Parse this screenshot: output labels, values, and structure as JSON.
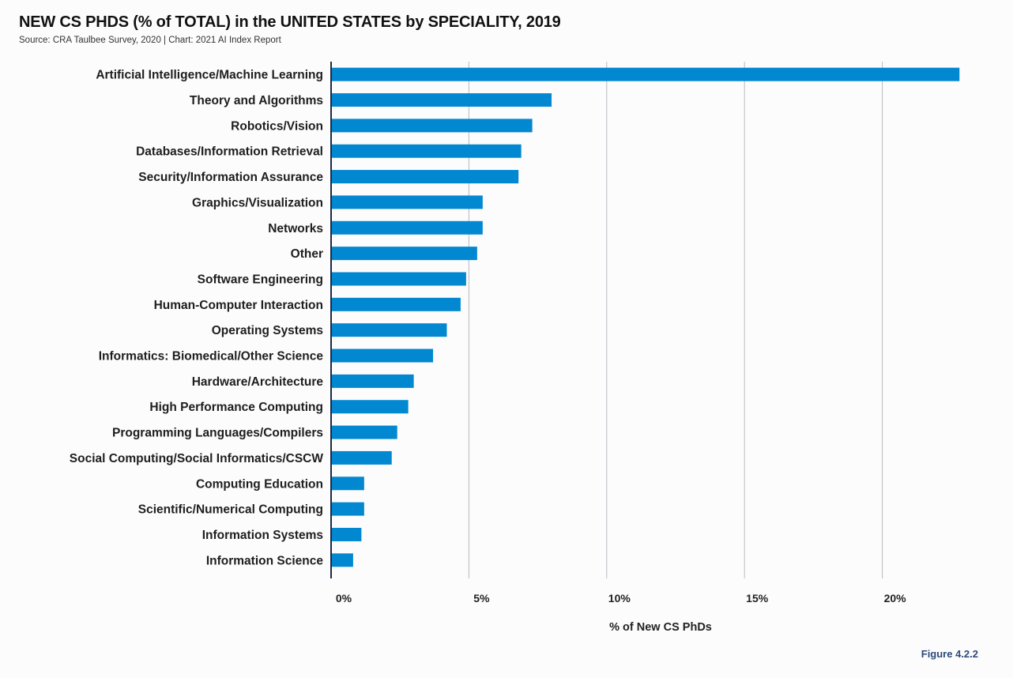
{
  "header": {
    "title": "NEW CS PHDS (% of TOTAL) in the UNITED STATES by SPECIALITY, 2019",
    "source": "Source: CRA Taulbee Survey, 2020 | Chart: 2021 AI Index Report"
  },
  "figure_label": "Figure 4.2.2",
  "chart_data": {
    "type": "bar",
    "orientation": "horizontal",
    "title": "NEW CS PHDS (% of TOTAL) in the UNITED STATES by SPECIALITY, 2019",
    "subtitle": "Source: CRA Taulbee Survey, 2020 | Chart: 2021 AI Index Report",
    "xlabel": "% of New CS PhDs",
    "ylabel": "",
    "xlim": [
      0,
      23
    ],
    "xticks": [
      0,
      5,
      10,
      15,
      20
    ],
    "xtick_labels": [
      "0%",
      "5%",
      "10%",
      "15%",
      "20%"
    ],
    "grid": true,
    "color": "#0288d1",
    "categories": [
      "Artificial Intelligence/Machine Learning",
      "Theory and Algorithms",
      "Robotics/Vision",
      "Databases/Information Retrieval",
      "Security/Information Assurance",
      "Graphics/Visualization",
      "Networks",
      "Other",
      "Software Engineering",
      "Human-Computer Interaction",
      "Operating Systems",
      "Informatics: Biomedical/Other Science",
      "Hardware/Architecture",
      "High Performance Computing",
      "Programming Languages/Compilers",
      "Social Computing/Social Informatics/CSCW",
      "Computing Education",
      "Scientific/Numerical Computing",
      "Information Systems",
      "Information Science"
    ],
    "values": [
      22.8,
      8.0,
      7.3,
      6.9,
      6.8,
      5.5,
      5.5,
      5.3,
      4.9,
      4.7,
      4.2,
      3.7,
      3.0,
      2.8,
      2.4,
      2.2,
      1.2,
      1.2,
      1.1,
      0.8
    ]
  }
}
